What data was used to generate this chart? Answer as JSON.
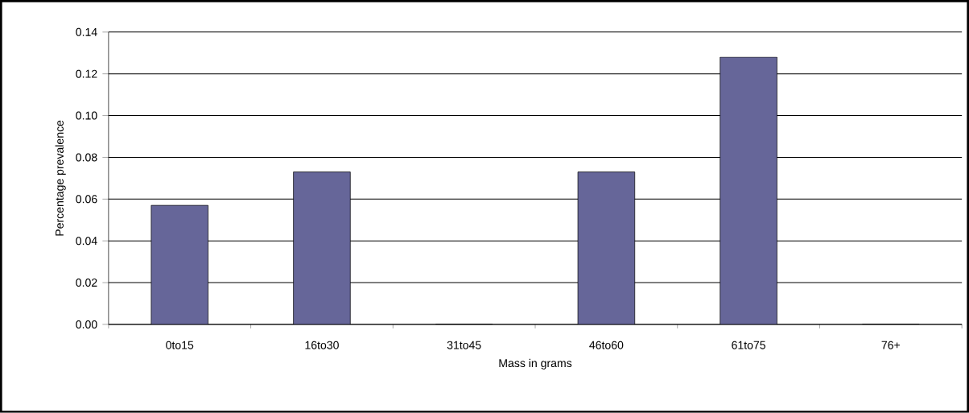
{
  "chart_data": {
    "type": "bar",
    "xlabel": "Mass in grams",
    "ylabel": "Percentage prevalence",
    "categories": [
      "0to15",
      "16to30",
      "31to45",
      "46to60",
      "61to75",
      "76+"
    ],
    "values": [
      0.057,
      0.073,
      0,
      0.073,
      0.128,
      0
    ],
    "color": "#666699",
    "ylim": [
      0,
      0.14
    ],
    "yticks": [
      {
        "value": 0,
        "label": "0.00"
      },
      {
        "value": 0.02,
        "label": "0.02"
      },
      {
        "value": 0.04,
        "label": "0.04"
      },
      {
        "value": 0.06,
        "label": "0.06"
      },
      {
        "value": 0.08,
        "label": "0.08"
      },
      {
        "value": 0.1,
        "label": "0.10"
      },
      {
        "value": 0.12,
        "label": "0.12"
      },
      {
        "value": 0.14,
        "label": "0.14"
      }
    ],
    "grid": "y"
  }
}
